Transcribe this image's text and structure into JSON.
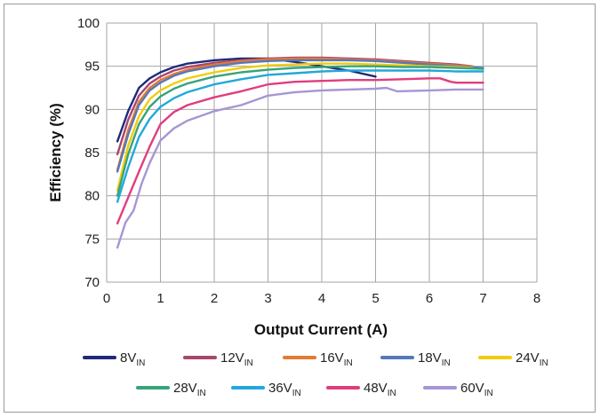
{
  "chart_data": {
    "type": "line",
    "xlabel": "Output Current (A)",
    "ylabel": "Efficiency (%)",
    "xlim": [
      0,
      8
    ],
    "ylim": [
      70,
      100
    ],
    "xticks": [
      0,
      1,
      2,
      3,
      4,
      5,
      6,
      7,
      8
    ],
    "yticks": [
      70,
      75,
      80,
      85,
      90,
      95,
      100
    ],
    "grid": true,
    "legend_position": "bottom",
    "series": [
      {
        "name": "8V",
        "sub": "IN",
        "color": "#1f2a7a",
        "x": [
          0.2,
          0.4,
          0.6,
          0.8,
          1.0,
          1.25,
          1.5,
          2.0,
          2.5,
          3.0,
          3.5,
          4.0,
          4.5,
          5.0
        ],
        "y": [
          86.3,
          89.8,
          92.5,
          93.6,
          94.3,
          94.9,
          95.3,
          95.7,
          95.9,
          95.9,
          95.5,
          95.0,
          94.5,
          93.8
        ]
      },
      {
        "name": "12V",
        "sub": "IN",
        "color": "#a8466f",
        "x": [
          0.2,
          0.4,
          0.6,
          0.8,
          1.0,
          1.25,
          1.5,
          2.0,
          2.5,
          3.0,
          3.5,
          4.0,
          4.5,
          5.0,
          5.5,
          6.0,
          6.5,
          6.8
        ],
        "y": [
          84.8,
          88.8,
          91.6,
          93.0,
          93.8,
          94.5,
          94.9,
          95.4,
          95.7,
          95.9,
          96.0,
          96.0,
          95.9,
          95.8,
          95.6,
          95.4,
          95.2,
          95.0
        ]
      },
      {
        "name": "16V",
        "sub": "IN",
        "color": "#e57a32",
        "x": [
          0.2,
          0.4,
          0.6,
          0.8,
          1.0,
          1.25,
          1.5,
          2.0,
          2.5,
          3.0,
          3.5,
          4.0,
          4.5,
          5.0,
          5.5,
          6.0,
          6.5,
          6.8
        ],
        "y": [
          83.0,
          87.6,
          90.9,
          92.5,
          93.4,
          94.1,
          94.6,
          95.2,
          95.6,
          95.8,
          95.9,
          95.9,
          95.8,
          95.7,
          95.5,
          95.3,
          95.1,
          95.0
        ]
      },
      {
        "name": "18V",
        "sub": "IN",
        "color": "#5479b8",
        "x": [
          0.2,
          0.4,
          0.6,
          0.8,
          1.0,
          1.25,
          1.5,
          2.0,
          2.5,
          3.0,
          3.5,
          4.0,
          4.5,
          5.0,
          5.5,
          6.0,
          6.5,
          7.0
        ],
        "y": [
          82.8,
          87.1,
          90.5,
          92.2,
          93.1,
          93.9,
          94.4,
          95.0,
          95.4,
          95.6,
          95.7,
          95.7,
          95.7,
          95.6,
          95.4,
          95.2,
          95.0,
          94.8
        ]
      },
      {
        "name": "24V",
        "sub": "IN",
        "color": "#f2cc0c",
        "x": [
          0.2,
          0.4,
          0.6,
          0.8,
          1.0,
          1.25,
          1.5,
          2.0,
          2.5,
          3.0,
          3.5,
          4.0,
          4.5,
          5.0,
          5.5,
          6.0,
          6.5,
          6.8
        ],
        "y": [
          80.6,
          85.8,
          89.2,
          91.2,
          92.2,
          93.0,
          93.6,
          94.3,
          94.8,
          95.1,
          95.2,
          95.3,
          95.3,
          95.2,
          95.1,
          95.0,
          94.9,
          94.8
        ]
      },
      {
        "name": "28V",
        "sub": "IN",
        "color": "#37a37a",
        "x": [
          0.2,
          0.4,
          0.6,
          0.8,
          1.0,
          1.25,
          1.5,
          2.0,
          2.5,
          3.0,
          3.5,
          4.0,
          4.5,
          5.0,
          5.5,
          6.0,
          6.5,
          7.0
        ],
        "y": [
          80.0,
          84.8,
          88.3,
          90.3,
          91.5,
          92.4,
          93.0,
          93.8,
          94.3,
          94.6,
          94.8,
          94.9,
          95.0,
          95.0,
          94.9,
          94.9,
          94.8,
          94.7
        ]
      },
      {
        "name": "36V",
        "sub": "IN",
        "color": "#22a8d8",
        "x": [
          0.2,
          0.4,
          0.6,
          0.8,
          1.0,
          1.25,
          1.5,
          2.0,
          2.5,
          3.0,
          3.5,
          4.0,
          4.5,
          5.0,
          5.5,
          6.0,
          6.5,
          7.0
        ],
        "y": [
          79.3,
          83.3,
          86.8,
          88.9,
          90.3,
          91.3,
          92.0,
          92.9,
          93.5,
          94.0,
          94.2,
          94.4,
          94.5,
          94.5,
          94.5,
          94.5,
          94.4,
          94.4
        ]
      },
      {
        "name": "48V",
        "sub": "IN",
        "color": "#e03d7d",
        "x": [
          0.2,
          0.4,
          0.6,
          0.8,
          1.0,
          1.25,
          1.5,
          2.0,
          2.5,
          3.0,
          3.5,
          4.0,
          4.5,
          5.0,
          5.5,
          6.0,
          6.2,
          6.4,
          6.5,
          7.0
        ],
        "y": [
          76.8,
          79.8,
          82.8,
          85.7,
          88.3,
          89.7,
          90.5,
          91.4,
          92.1,
          92.9,
          93.2,
          93.3,
          93.4,
          93.4,
          93.5,
          93.6,
          93.6,
          93.2,
          93.1,
          93.1
        ]
      },
      {
        "name": "60V",
        "sub": "IN",
        "color": "#a795d5",
        "x": [
          0.2,
          0.35,
          0.5,
          0.65,
          0.8,
          1.0,
          1.25,
          1.5,
          2.0,
          2.5,
          3.0,
          3.5,
          4.0,
          4.5,
          5.0,
          5.2,
          5.4,
          6.0,
          6.5,
          7.0
        ],
        "y": [
          74.0,
          76.9,
          78.3,
          81.4,
          83.8,
          86.4,
          87.8,
          88.7,
          89.8,
          90.5,
          91.6,
          92.0,
          92.2,
          92.3,
          92.4,
          92.5,
          92.1,
          92.2,
          92.3,
          92.3
        ]
      }
    ]
  }
}
